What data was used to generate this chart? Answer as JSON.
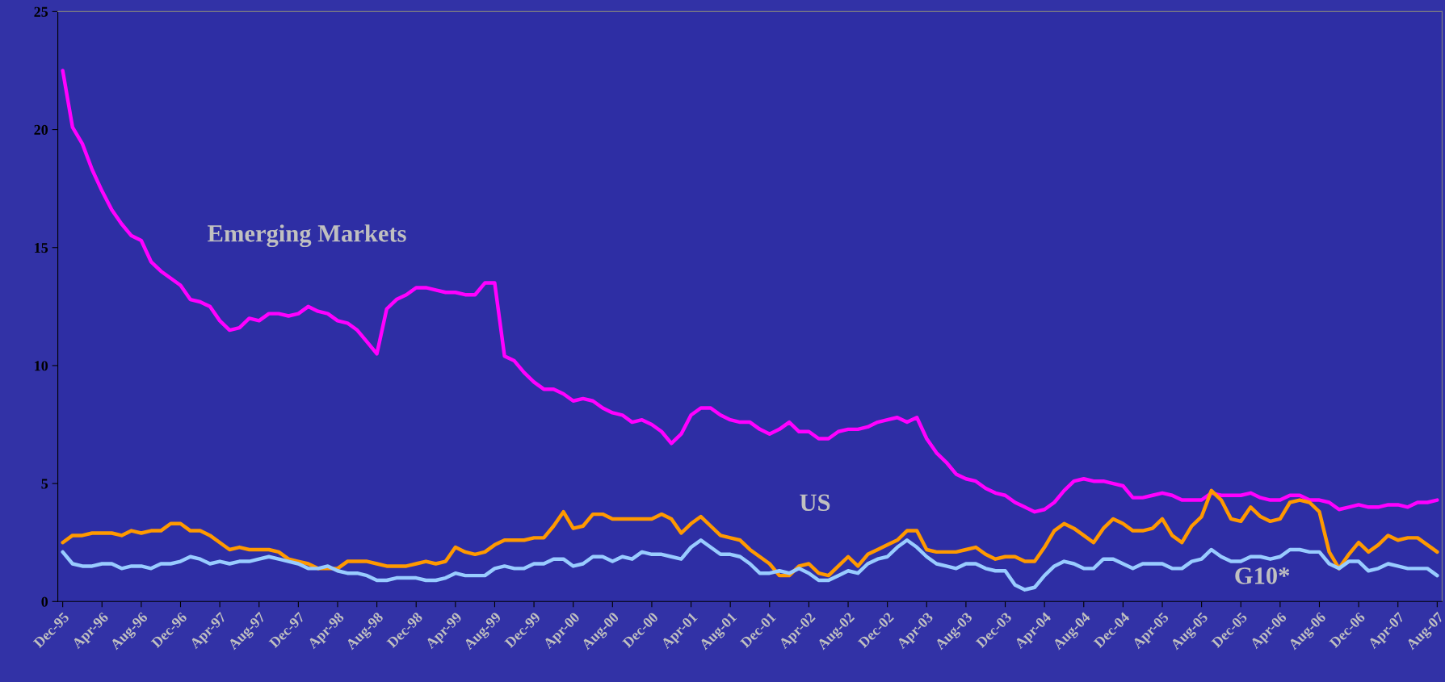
{
  "chart_data": {
    "type": "line",
    "categories": [
      "Dec-95",
      null,
      null,
      null,
      "Apr-96",
      null,
      null,
      null,
      "Aug-96",
      null,
      null,
      null,
      "Dec-96",
      null,
      null,
      null,
      "Apr-97",
      null,
      null,
      null,
      "Aug-97",
      null,
      null,
      null,
      "Dec-97",
      null,
      null,
      null,
      "Apr-98",
      null,
      null,
      null,
      "Aug-98",
      null,
      null,
      null,
      "Dec-98",
      null,
      null,
      null,
      "Apr-99",
      null,
      null,
      null,
      "Aug-99",
      null,
      null,
      null,
      "Dec-99",
      null,
      null,
      null,
      "Apr-00",
      null,
      null,
      null,
      "Aug-00",
      null,
      null,
      null,
      "Dec-00",
      null,
      null,
      null,
      "Apr-01",
      null,
      null,
      null,
      "Aug-01",
      null,
      null,
      null,
      "Dec-01",
      null,
      null,
      null,
      "Apr-02",
      null,
      null,
      null,
      "Aug-02",
      null,
      null,
      null,
      "Dec-02",
      null,
      null,
      null,
      "Apr-03",
      null,
      null,
      null,
      "Aug-03",
      null,
      null,
      null,
      "Dec-03",
      null,
      null,
      null,
      "Apr-04",
      null,
      null,
      null,
      "Aug-04",
      null,
      null,
      null,
      "Dec-04",
      null,
      null,
      null,
      "Apr-05",
      null,
      null,
      null,
      "Aug-05",
      null,
      null,
      null,
      "Dec-05",
      null,
      null,
      null,
      "Apr-06",
      null,
      null,
      null,
      "Aug-06",
      null,
      null,
      null,
      "Dec-06",
      null,
      null,
      null,
      "Apr-07",
      null,
      null,
      null,
      "Aug-07"
    ],
    "series": [
      {
        "name": "Emerging Markets",
        "color": "#ff00ff",
        "values": [
          22.5,
          20.1,
          19.4,
          18.3,
          17.4,
          16.6,
          16.0,
          15.5,
          15.3,
          14.4,
          14.0,
          13.7,
          13.4,
          12.8,
          12.7,
          12.5,
          11.9,
          11.5,
          11.6,
          12.0,
          11.9,
          12.2,
          12.2,
          12.1,
          12.2,
          12.5,
          12.3,
          12.2,
          11.9,
          11.8,
          11.5,
          11.0,
          10.5,
          12.4,
          12.8,
          13.0,
          13.3,
          13.3,
          13.2,
          13.1,
          13.1,
          13.0,
          13.0,
          13.5,
          13.5,
          10.4,
          10.2,
          9.7,
          9.3,
          9.0,
          9.0,
          8.8,
          8.5,
          8.6,
          8.5,
          8.2,
          8.0,
          7.9,
          7.6,
          7.7,
          7.5,
          7.2,
          6.7,
          7.1,
          7.9,
          8.2,
          8.2,
          7.9,
          7.7,
          7.6,
          7.6,
          7.3,
          7.1,
          7.3,
          7.6,
          7.2,
          7.2,
          6.9,
          6.9,
          7.2,
          7.3,
          7.3,
          7.4,
          7.6,
          7.7,
          7.8,
          7.6,
          7.8,
          6.9,
          6.3,
          5.9,
          5.4,
          5.2,
          5.1,
          4.8,
          4.6,
          4.5,
          4.2,
          4.0,
          3.8,
          3.9,
          4.2,
          4.7,
          5.1,
          5.2,
          5.1,
          5.1,
          5.0,
          4.9,
          4.4,
          4.4,
          4.5,
          4.6,
          4.5,
          4.3,
          4.3,
          4.3,
          4.6,
          4.5,
          4.5,
          4.5,
          4.6,
          4.4,
          4.3,
          4.3,
          4.5,
          4.5,
          4.3,
          4.3,
          4.2,
          3.9,
          4.0,
          4.1,
          4.0,
          4.0,
          4.1,
          4.1,
          4.0,
          4.2,
          4.2,
          4.3
        ]
      },
      {
        "name": "US",
        "color": "#ff9900",
        "values": [
          2.5,
          2.8,
          2.8,
          2.9,
          2.9,
          2.9,
          2.8,
          3.0,
          2.9,
          3.0,
          3.0,
          3.3,
          3.3,
          3.0,
          3.0,
          2.8,
          2.5,
          2.2,
          2.3,
          2.2,
          2.2,
          2.2,
          2.1,
          1.8,
          1.7,
          1.6,
          1.4,
          1.4,
          1.4,
          1.7,
          1.7,
          1.7,
          1.6,
          1.5,
          1.5,
          1.5,
          1.6,
          1.7,
          1.6,
          1.7,
          2.3,
          2.1,
          2.0,
          2.1,
          2.4,
          2.6,
          2.6,
          2.6,
          2.7,
          2.7,
          3.2,
          3.8,
          3.1,
          3.2,
          3.7,
          3.7,
          3.5,
          3.5,
          3.5,
          3.5,
          3.5,
          3.7,
          3.5,
          2.9,
          3.3,
          3.6,
          3.2,
          2.8,
          2.7,
          2.6,
          2.2,
          1.9,
          1.6,
          1.1,
          1.1,
          1.5,
          1.6,
          1.2,
          1.1,
          1.5,
          1.9,
          1.5,
          2.0,
          2.2,
          2.4,
          2.6,
          3.0,
          3.0,
          2.2,
          2.1,
          2.1,
          2.1,
          2.2,
          2.3,
          2.0,
          1.8,
          1.9,
          1.9,
          1.7,
          1.7,
          2.3,
          3.0,
          3.3,
          3.1,
          2.8,
          2.5,
          3.1,
          3.5,
          3.3,
          3.0,
          3.0,
          3.1,
          3.5,
          2.8,
          2.5,
          3.2,
          3.6,
          4.7,
          4.3,
          3.5,
          3.4,
          4.0,
          3.6,
          3.4,
          3.5,
          4.2,
          4.3,
          4.2,
          3.8,
          2.1,
          1.4,
          2.0,
          2.5,
          2.1,
          2.4,
          2.8,
          2.6,
          2.7,
          2.7,
          2.4,
          2.1
        ]
      },
      {
        "name": "G10*",
        "color": "#99ccff",
        "values": [
          2.1,
          1.6,
          1.5,
          1.5,
          1.6,
          1.6,
          1.4,
          1.5,
          1.5,
          1.4,
          1.6,
          1.6,
          1.7,
          1.9,
          1.8,
          1.6,
          1.7,
          1.6,
          1.7,
          1.7,
          1.8,
          1.9,
          1.8,
          1.7,
          1.6,
          1.4,
          1.4,
          1.5,
          1.3,
          1.2,
          1.2,
          1.1,
          0.9,
          0.9,
          1.0,
          1.0,
          1.0,
          0.9,
          0.9,
          1.0,
          1.2,
          1.1,
          1.1,
          1.1,
          1.4,
          1.5,
          1.4,
          1.4,
          1.6,
          1.6,
          1.8,
          1.8,
          1.5,
          1.6,
          1.9,
          1.9,
          1.7,
          1.9,
          1.8,
          2.1,
          2.0,
          2.0,
          1.9,
          1.8,
          2.3,
          2.6,
          2.3,
          2.0,
          2.0,
          1.9,
          1.6,
          1.2,
          1.2,
          1.3,
          1.2,
          1.4,
          1.2,
          0.9,
          0.9,
          1.1,
          1.3,
          1.2,
          1.6,
          1.8,
          1.9,
          2.3,
          2.6,
          2.3,
          1.9,
          1.6,
          1.5,
          1.4,
          1.6,
          1.6,
          1.4,
          1.3,
          1.3,
          0.7,
          0.5,
          0.6,
          1.1,
          1.5,
          1.7,
          1.6,
          1.4,
          1.4,
          1.8,
          1.8,
          1.6,
          1.4,
          1.6,
          1.6,
          1.6,
          1.4,
          1.4,
          1.7,
          1.8,
          2.2,
          1.9,
          1.7,
          1.7,
          1.9,
          1.9,
          1.8,
          1.9,
          2.2,
          2.2,
          2.1,
          2.1,
          1.6,
          1.4,
          1.7,
          1.7,
          1.3,
          1.4,
          1.6,
          1.5,
          1.4,
          1.4,
          1.4,
          1.1
        ]
      }
    ],
    "ylim": [
      0,
      25
    ],
    "yticks": [
      0,
      5,
      10,
      15,
      20,
      25
    ]
  }
}
